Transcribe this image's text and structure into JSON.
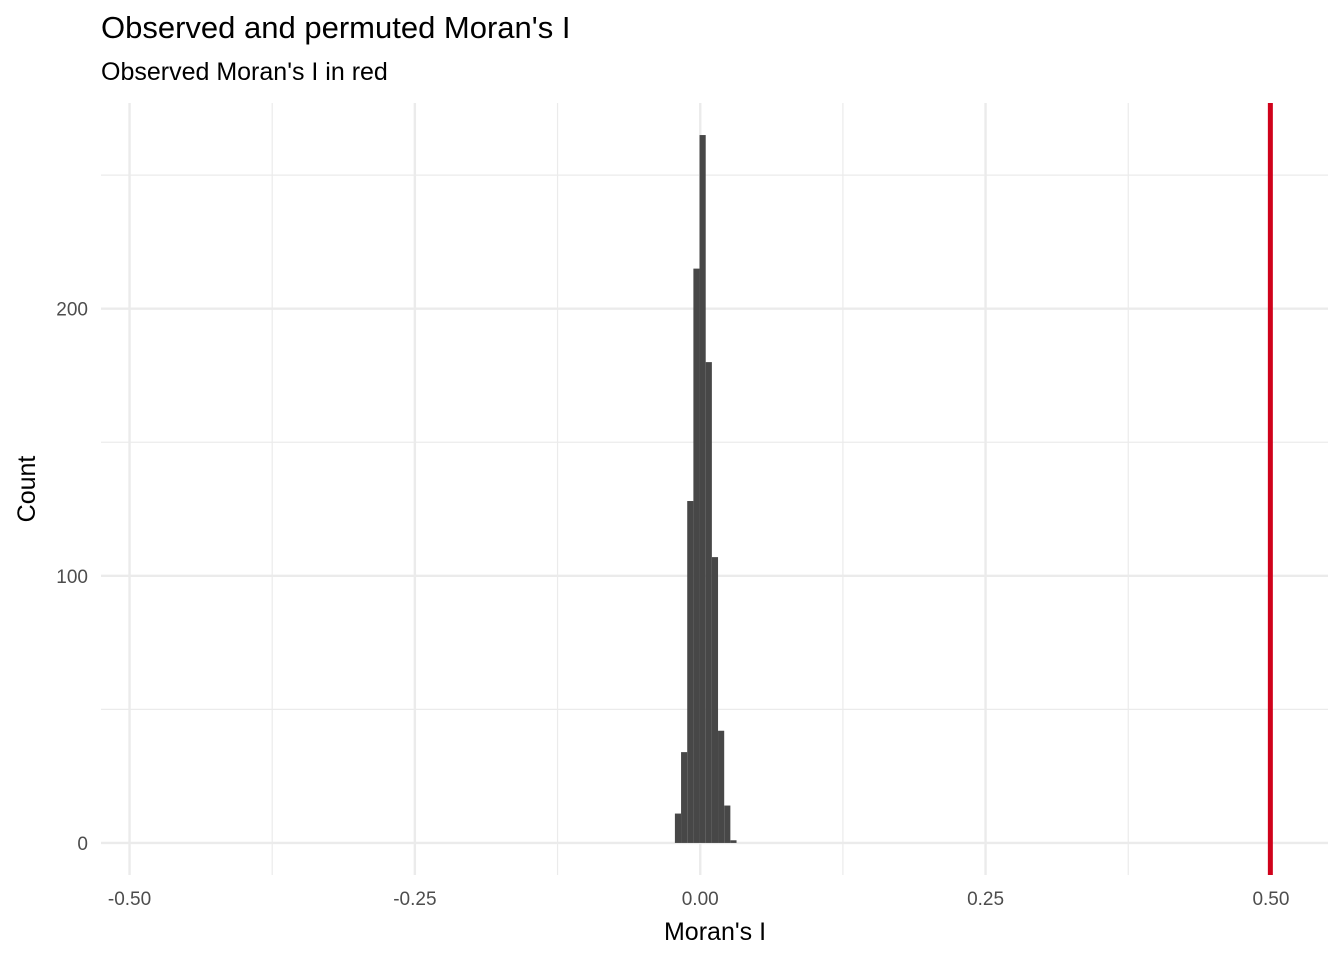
{
  "chart_data": {
    "type": "bar",
    "title": "Observed and permuted Moran's I",
    "subtitle": "Observed Moran's I in red",
    "xlabel": "Moran's I",
    "ylabel": "Count",
    "xlim": [
      -0.525,
      0.55
    ],
    "ylim": [
      -12,
      277
    ],
    "x_ticks": [
      -0.5,
      -0.25,
      0.0,
      0.25,
      0.5
    ],
    "x_tick_labels": [
      "-0.50",
      "-0.25",
      "0.00",
      "0.25",
      "0.50"
    ],
    "y_ticks": [
      0,
      100,
      200
    ],
    "y_tick_labels": [
      "0",
      "100",
      "200"
    ],
    "grid": true,
    "legend": "none",
    "bin_width": 0.0054,
    "bins": [
      {
        "center": -0.0195,
        "count": 11
      },
      {
        "center": -0.0141,
        "count": 34
      },
      {
        "center": -0.0087,
        "count": 128
      },
      {
        "center": -0.0033,
        "count": 215
      },
      {
        "center": 0.0021,
        "count": 265
      },
      {
        "center": 0.0075,
        "count": 180
      },
      {
        "center": 0.0129,
        "count": 107
      },
      {
        "center": 0.0183,
        "count": 42
      },
      {
        "center": 0.0237,
        "count": 14
      },
      {
        "center": 0.0291,
        "count": 1
      }
    ],
    "bar_color": "#474747",
    "observed_value": 0.4995,
    "observed_color": "#d0021b"
  }
}
